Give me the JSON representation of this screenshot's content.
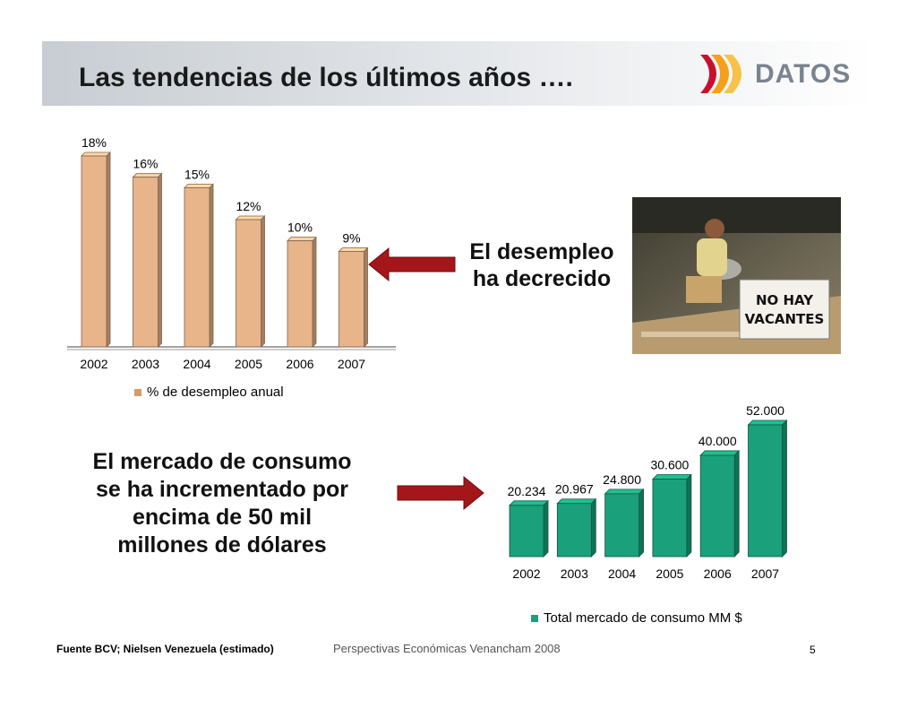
{
  "title": "Las tendencias de los últimos años ….",
  "logo": {
    "text": "DATOS",
    "icon": "datos-logo-icon"
  },
  "callouts": {
    "desempleo": [
      "El desempleo",
      "ha decrecido"
    ],
    "mercado": [
      "El mercado de consumo",
      "se ha incrementado por",
      "encima de 50 mil",
      "millones de dólares"
    ]
  },
  "photo": {
    "sign_lines": [
      "NO HAY",
      "VACANTES"
    ]
  },
  "footer": {
    "source": "Fuente BCV; Nielsen Venezuela (estimado)",
    "center": "Perspectivas Económicas Venancham 2008",
    "page": "5"
  },
  "colors": {
    "bar1": "#e8b48a",
    "bar2": "#1aa07a",
    "arrow": "#a5161a"
  },
  "chart_data": [
    {
      "type": "bar",
      "categories": [
        "2002",
        "2003",
        "2004",
        "2005",
        "2006",
        "2007"
      ],
      "series": [
        {
          "name": "% de desempleo anual",
          "values": [
            18,
            16,
            15,
            12,
            10,
            9
          ]
        }
      ],
      "data_labels": [
        "18%",
        "16%",
        "15%",
        "12%",
        "10%",
        "9%"
      ],
      "ylim": [
        0,
        18
      ],
      "legend": "bottom",
      "grid": false
    },
    {
      "type": "bar",
      "categories": [
        "2002",
        "2003",
        "2004",
        "2005",
        "2006",
        "2007"
      ],
      "series": [
        {
          "name": "Total mercado de consumo MM $",
          "values": [
            20234,
            20967,
            24800,
            30600,
            40000,
            52000
          ]
        }
      ],
      "data_labels": [
        "20.234",
        "20.967",
        "24.800",
        "30.600",
        "40.000",
        "52.000"
      ],
      "legend": "bottom",
      "grid": false
    }
  ]
}
